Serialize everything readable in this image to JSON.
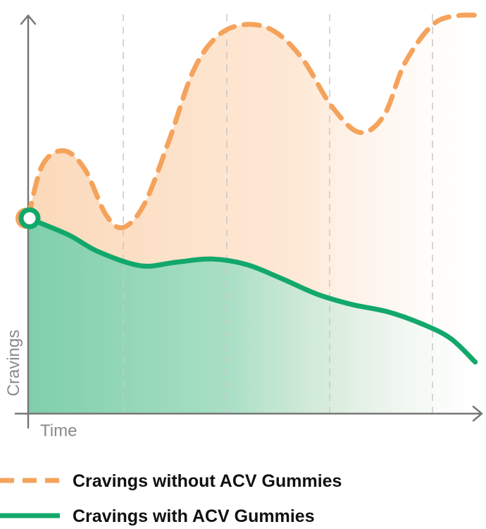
{
  "chart_data": {
    "type": "line",
    "x_label": "Time",
    "y_label": "Cravings",
    "xlim": [
      0,
      100
    ],
    "ylim": [
      0,
      100
    ],
    "series": [
      {
        "name": "Cravings without ACV Gummies",
        "color": "#f5a35c",
        "style": "dashed",
        "x": [
          0,
          3.1,
          7.8,
          12.4,
          17.1,
          20.9,
          25.6,
          31,
          36.4,
          41.9,
          48.1,
          54.3,
          60.5,
          66.7,
          72.9,
          78.3,
          82.9,
          89.1,
          94.6,
          100
        ],
        "values": [
          48.9,
          62.1,
          65.8,
          61.3,
          49.8,
          46.6,
          52.5,
          68.3,
          85.9,
          94.7,
          97.4,
          95.6,
          88.6,
          77.1,
          70.4,
          74.6,
          87.7,
          97.4,
          99.6,
          99.6
        ]
      },
      {
        "name": "Cravings with ACV Gummies",
        "color": "#13a86b",
        "style": "solid",
        "x": [
          0,
          3.1,
          9.3,
          15.5,
          24.8,
          32.6,
          40.3,
          48.1,
          55.8,
          63.6,
          71.3,
          79.1,
          86.8,
          93,
          98.4
        ],
        "values": [
          48.9,
          47.5,
          44.5,
          40.5,
          37,
          37.9,
          38.7,
          37.3,
          33.8,
          29.9,
          27.3,
          25.5,
          22.4,
          18.8,
          12.9
        ]
      }
    ]
  }
}
